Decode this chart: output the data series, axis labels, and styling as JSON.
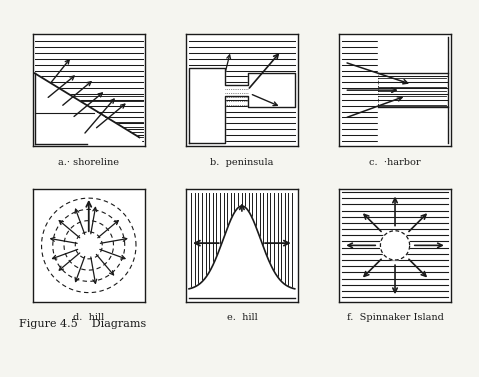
{
  "title": "Figure 4.5    Diagrams",
  "labels": [
    "a.· shoreline",
    "b.  peninsula",
    "c.  ·harbor",
    "d.  hill",
    "e.  hill",
    "f.  Spinnaker Island"
  ],
  "bg_color": "#f5f5f0",
  "line_color": "#1a1a1a",
  "figsize": [
    4.79,
    3.77
  ],
  "dpi": 100
}
